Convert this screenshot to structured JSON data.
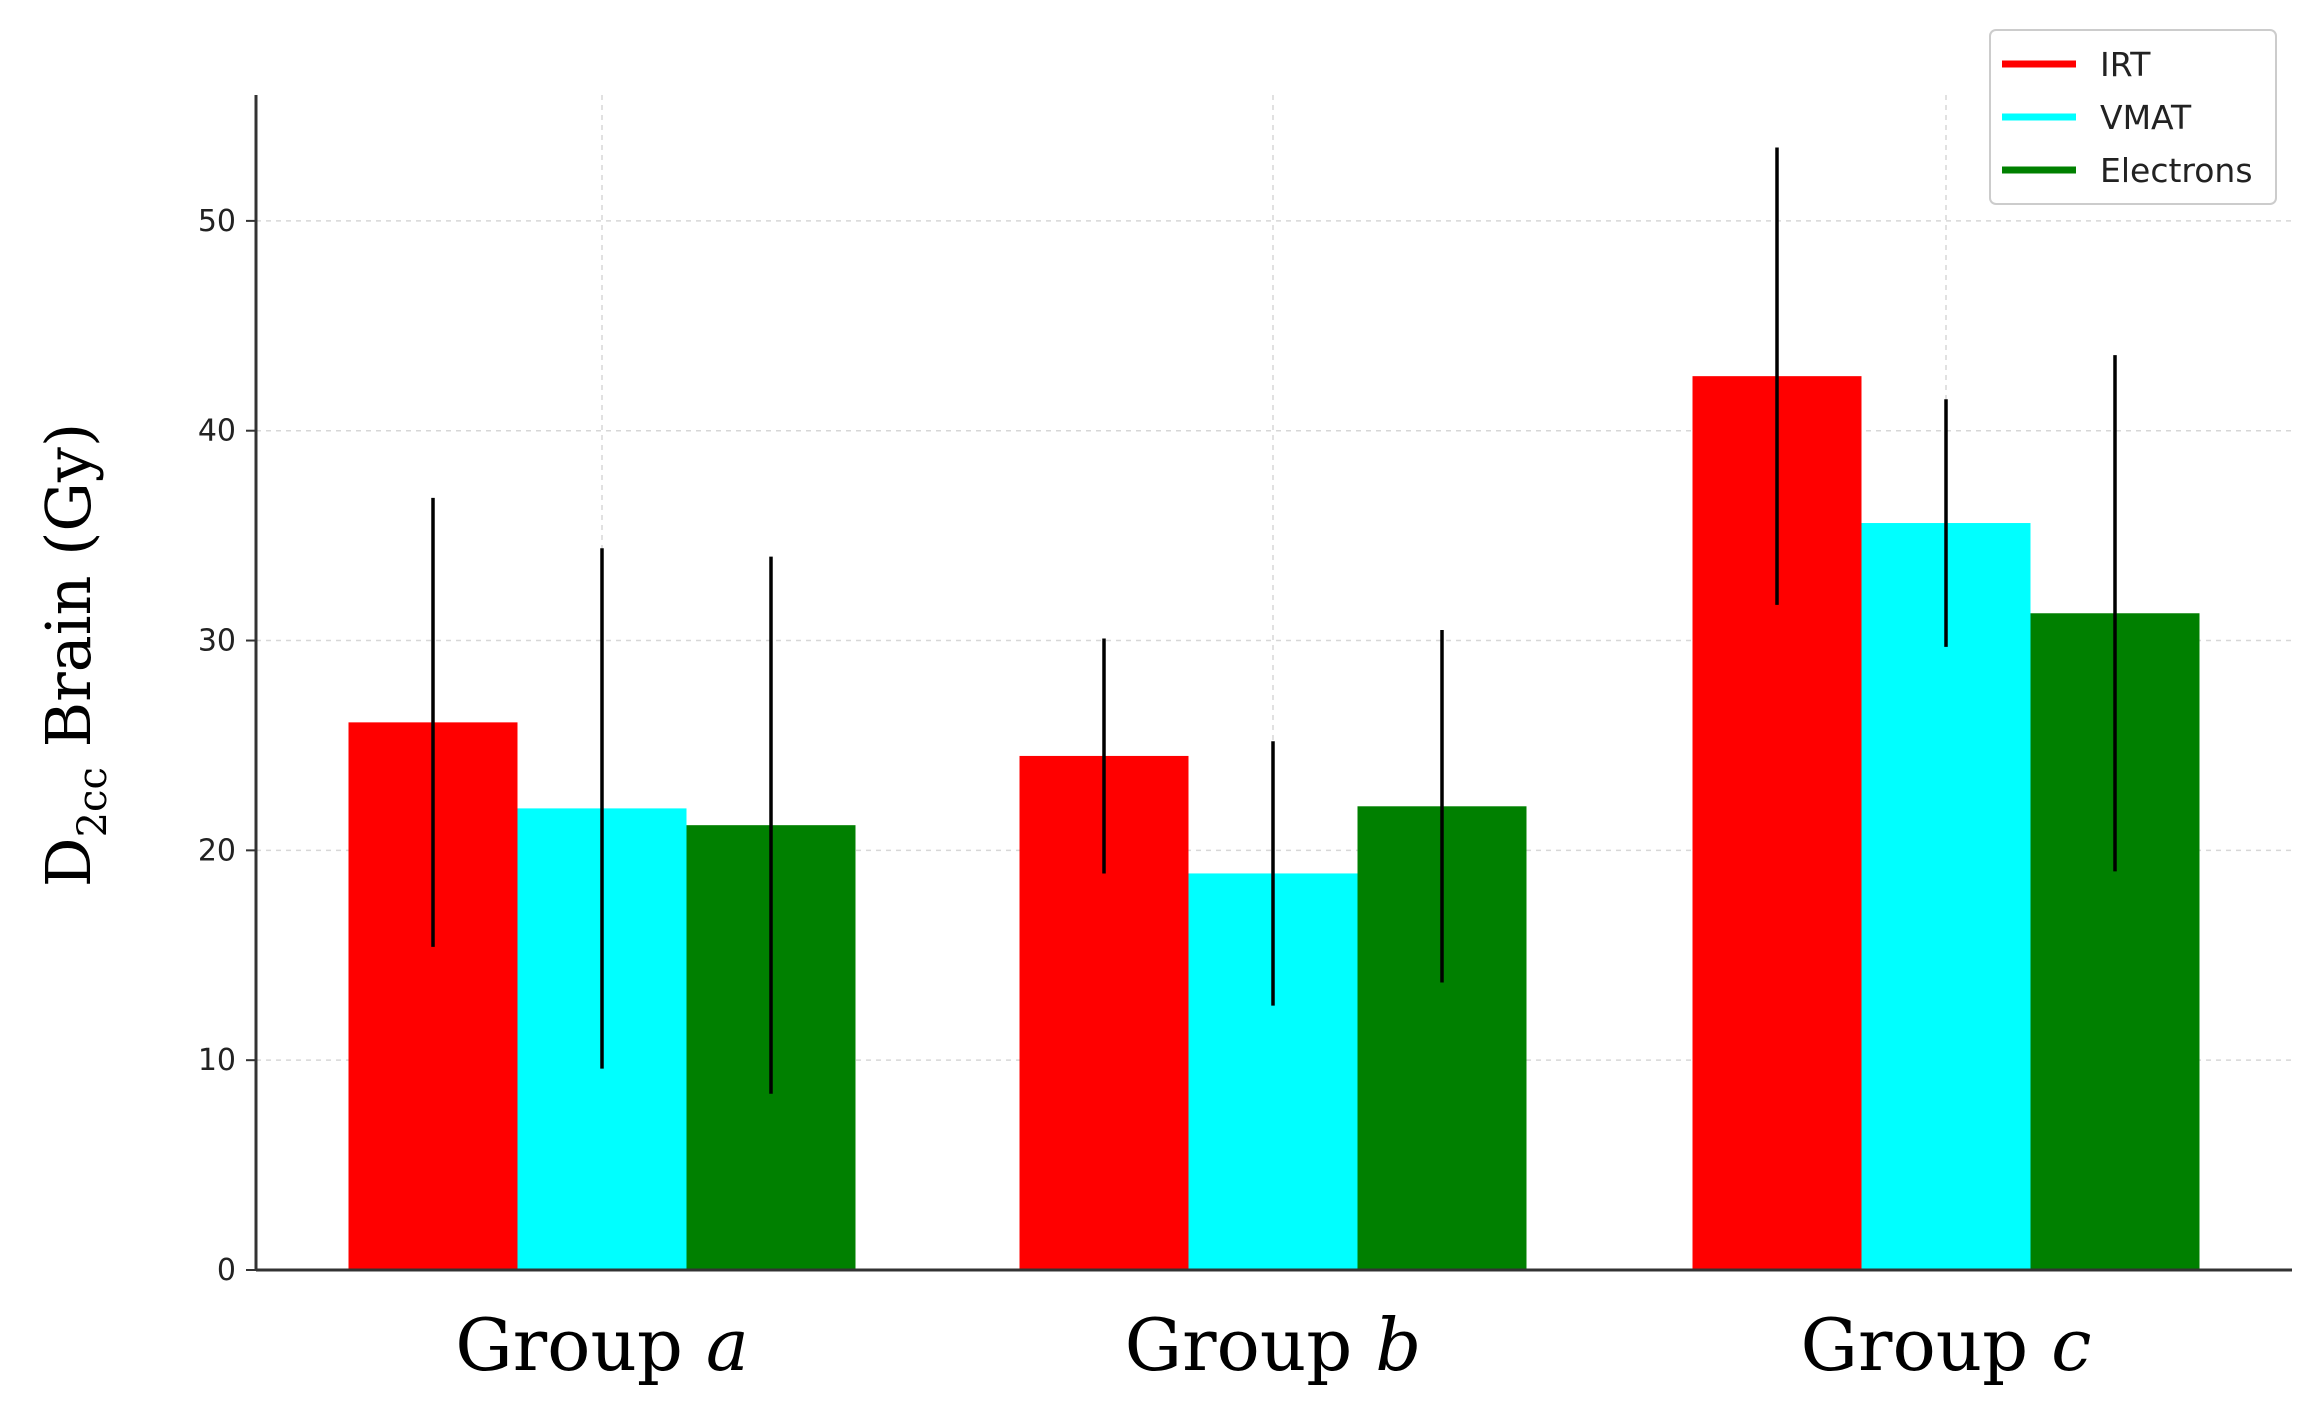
{
  "chart_data": {
    "type": "bar",
    "title": "",
    "xlabel": "",
    "ylabel_main": "D",
    "ylabel_sub": "2cc",
    "ylabel_rest": " Brain (Gy)",
    "ylim": [
      0,
      56
    ],
    "yticks": [
      0,
      10,
      20,
      30,
      40,
      50
    ],
    "grid": true,
    "legend_position": "top-right",
    "categories": [
      {
        "prefix": "Group ",
        "letter": "a"
      },
      {
        "prefix": "Group ",
        "letter": "b"
      },
      {
        "prefix": "Group ",
        "letter": "c"
      }
    ],
    "series": [
      {
        "name": "IRT",
        "color": "#ff0000",
        "values": [
          26.1,
          24.5,
          42.6
        ],
        "errors": [
          10.7,
          5.6,
          10.9
        ]
      },
      {
        "name": "VMAT",
        "color": "#00ffff",
        "values": [
          22.0,
          18.9,
          35.6
        ],
        "errors": [
          12.4,
          6.3,
          5.9
        ]
      },
      {
        "name": "Electrons",
        "color": "#008000",
        "values": [
          21.2,
          22.1,
          31.3
        ],
        "errors": [
          12.8,
          8.4,
          12.3
        ]
      }
    ]
  }
}
